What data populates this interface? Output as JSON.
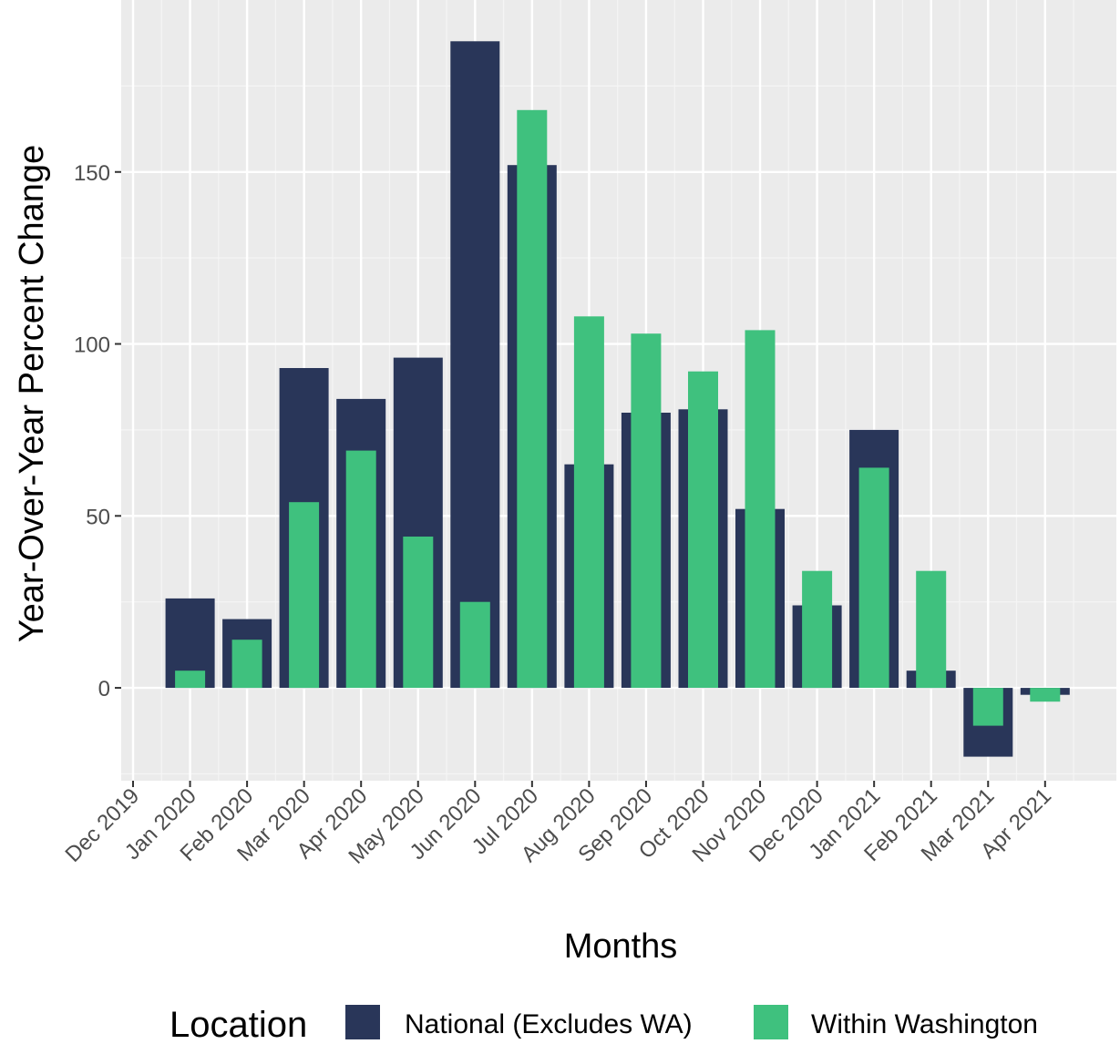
{
  "chart_data": {
    "type": "bar",
    "xlabel": "Months",
    "ylabel": "Year-Over-Year Percent Change",
    "ylim": [
      -27,
      200
    ],
    "yticks": [
      0,
      50,
      100,
      150
    ],
    "grid": true,
    "legend": {
      "title": "Location",
      "placement": "bottom"
    },
    "x_ticks": [
      "Dec 2019",
      "Jan 2020",
      "Feb 2020",
      "Mar 2020",
      "Apr 2020",
      "May 2020",
      "Jun 2020",
      "Jul 2020",
      "Aug 2020",
      "Sep 2020",
      "Oct 2020",
      "Nov 2020",
      "Dec 2020",
      "Jan 2021",
      "Feb 2021",
      "Mar 2021",
      "Apr 2021"
    ],
    "categories": [
      "Jan 2020",
      "Feb 2020",
      "Mar 2020",
      "Apr 2020",
      "May 2020",
      "Jun 2020",
      "Jul 2020",
      "Aug 2020",
      "Sep 2020",
      "Oct 2020",
      "Nov 2020",
      "Dec 2020",
      "Jan 2021",
      "Feb 2021",
      "Mar 2021",
      "Apr 2021"
    ],
    "series": [
      {
        "name": "National (Excludes WA)",
        "color": "#293659",
        "values": [
          26,
          20,
          93,
          84,
          96,
          188,
          152,
          65,
          80,
          81,
          52,
          24,
          75,
          5,
          -20,
          -2
        ]
      },
      {
        "name": "Within Washington",
        "color": "#3fc17e",
        "values": [
          5,
          14,
          54,
          69,
          44,
          25,
          168,
          108,
          103,
          92,
          104,
          34,
          64,
          34,
          -11,
          -4
        ]
      }
    ]
  }
}
